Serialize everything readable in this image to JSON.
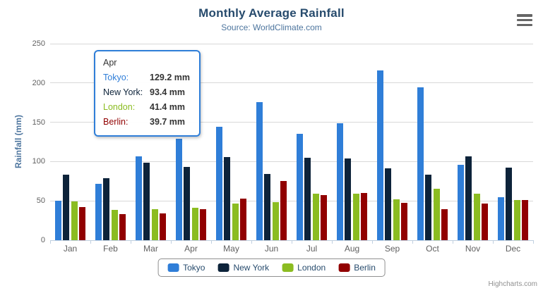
{
  "chart": {
    "title": "Monthly Average Rainfall",
    "subtitle": "Source: WorldClimate.com",
    "y_axis_title": "Rainfall (mm)",
    "credits": "Highcharts.com",
    "menu_icon": "hamburger-menu-icon"
  },
  "colors": {
    "tokyo": "#2f7ed8",
    "new_york": "#0d233a",
    "london": "#8bbc21",
    "berlin": "#910000",
    "title_text": "#274b6d",
    "subtitle_text": "#4d759e",
    "axis_label": "#606060",
    "grid_line": "#d8d8d8",
    "axis_line": "#c0d0e0",
    "legend_border": "#909090",
    "tooltip_border": "#2f7ed8"
  },
  "tooltip": {
    "header": "Apr",
    "rows": [
      {
        "label": "Tokyo:",
        "value": "129.2 mm",
        "color": "#2f7ed8"
      },
      {
        "label": "New York:",
        "value": "93.4 mm",
        "color": "#0d233a"
      },
      {
        "label": "London:",
        "value": "41.4 mm",
        "color": "#8bbc21"
      },
      {
        "label": "Berlin:",
        "value": "39.7 mm",
        "color": "#910000"
      }
    ]
  },
  "chart_data": {
    "type": "bar",
    "title": "Monthly Average Rainfall",
    "subtitle": "Source: WorldClimate.com",
    "categories": [
      "Jan",
      "Feb",
      "Mar",
      "Apr",
      "May",
      "Jun",
      "Jul",
      "Aug",
      "Sep",
      "Oct",
      "Nov",
      "Dec"
    ],
    "series": [
      {
        "name": "Tokyo",
        "color": "#2f7ed8",
        "values": [
          49.9,
          71.5,
          106.4,
          129.2,
          144.0,
          176.0,
          135.6,
          148.5,
          216.4,
          194.1,
          95.6,
          54.4
        ]
      },
      {
        "name": "New York",
        "color": "#0d233a",
        "values": [
          83.6,
          78.8,
          98.5,
          93.4,
          106.0,
          84.5,
          105.0,
          104.3,
          91.2,
          83.5,
          106.6,
          92.3
        ]
      },
      {
        "name": "London",
        "color": "#8bbc21",
        "values": [
          48.9,
          38.8,
          39.3,
          41.4,
          47.0,
          48.3,
          59.0,
          59.6,
          52.4,
          65.2,
          59.3,
          51.2
        ]
      },
      {
        "name": "Berlin",
        "color": "#910000",
        "values": [
          42.4,
          33.2,
          34.5,
          39.7,
          52.6,
          75.5,
          57.4,
          60.4,
          47.6,
          39.1,
          46.8,
          51.1
        ]
      }
    ],
    "xlabel": "",
    "ylabel": "Rainfall (mm)",
    "ylim": [
      0,
      250
    ],
    "ytick_interval": 50,
    "grid": true,
    "legend_position": "bottom"
  }
}
